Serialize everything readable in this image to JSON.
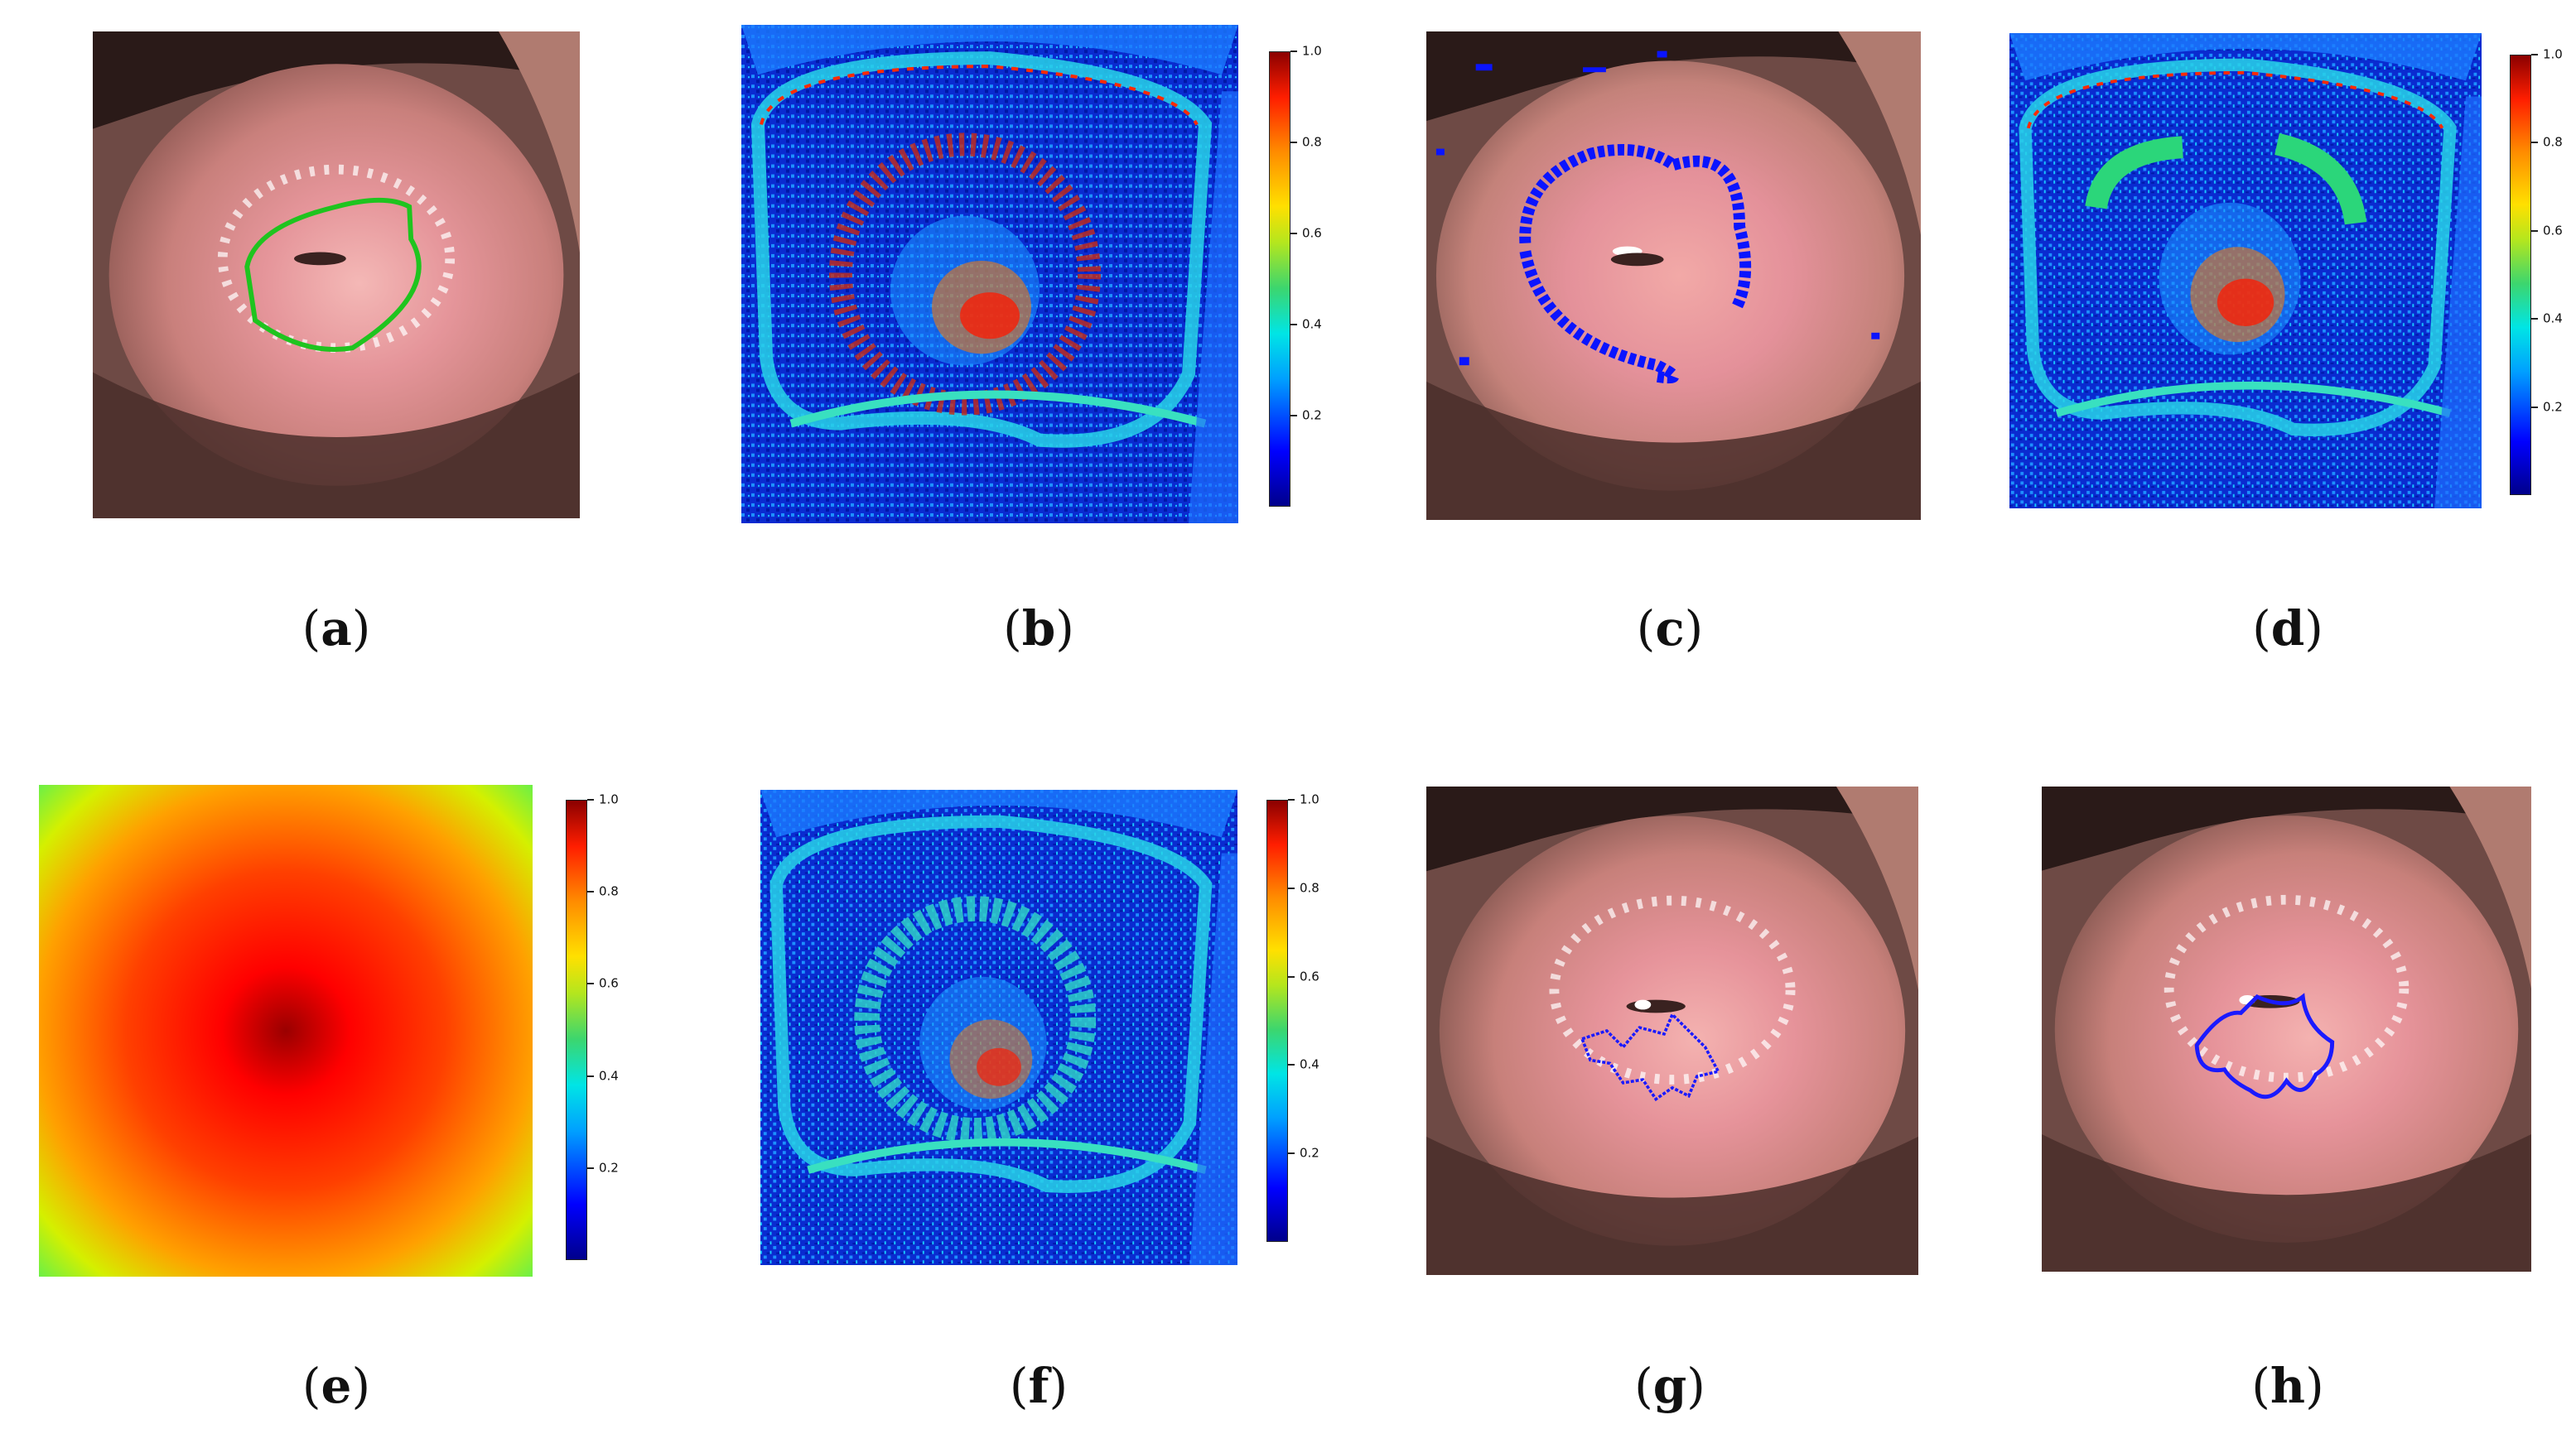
{
  "panels": [
    {
      "id": "a",
      "caption_open": "(",
      "caption_letter": "a",
      "caption_close": ")",
      "kind": "photo-green-contour"
    },
    {
      "id": "b",
      "caption_open": "(",
      "caption_letter": "b",
      "caption_close": ")",
      "kind": "jet-heatmap"
    },
    {
      "id": "c",
      "caption_open": "(",
      "caption_letter": "c",
      "caption_close": ")",
      "kind": "photo-blue-mask"
    },
    {
      "id": "d",
      "caption_open": "(",
      "caption_letter": "d",
      "caption_close": ")",
      "kind": "jet-heatmap"
    },
    {
      "id": "e",
      "caption_open": "(",
      "caption_letter": "e",
      "caption_close": ")",
      "kind": "radial-weight-map"
    },
    {
      "id": "f",
      "caption_open": "(",
      "caption_letter": "f",
      "caption_close": ")",
      "kind": "jet-heatmap"
    },
    {
      "id": "g",
      "caption_open": "(",
      "caption_letter": "g",
      "caption_close": ")",
      "kind": "photo-blue-contour"
    },
    {
      "id": "h",
      "caption_open": "(",
      "caption_letter": "h",
      "caption_close": ")",
      "kind": "photo-blue-contour"
    }
  ],
  "colorbar": {
    "ticks": [
      "1.0",
      "0.8",
      "0.6",
      "0.4",
      "0.2"
    ],
    "tick_values": [
      1.0,
      0.8,
      0.6,
      0.4,
      0.2
    ],
    "min": 0.0,
    "max": 1.0,
    "colormap": "jet"
  },
  "colors": {
    "contour_green": "#1fc41f",
    "contour_blue": "#1a1aff",
    "mask_blue": "#0a14ff",
    "tissue_pink": "#e8a2a0",
    "lesion_red": "#e04848"
  }
}
